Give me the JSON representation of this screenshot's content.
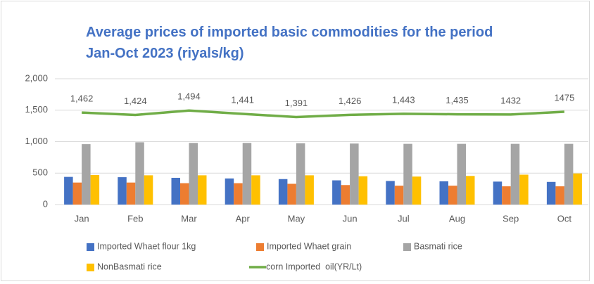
{
  "chart_data": {
    "type": "bar",
    "title": [
      "Average prices of imported basic commodities for the period",
      "Jan-Oct 2023 (riyals/kg)"
    ],
    "categories": [
      "Jan",
      "Feb",
      "Mar",
      "Apr",
      "May",
      "Jun",
      "Jul",
      "Aug",
      "Sep",
      "Oct"
    ],
    "series": [
      {
        "name": "Imported Whaet flour 1kg",
        "color": "#4472c4",
        "values": [
          440,
          435,
          425,
          415,
          405,
          385,
          375,
          370,
          365,
          360
        ]
      },
      {
        "name": "Imported Whaet grain",
        "color": "#ed7d31",
        "values": [
          350,
          350,
          340,
          340,
          330,
          310,
          300,
          300,
          290,
          290
        ]
      },
      {
        "name": "Basmati rice",
        "color": "#a5a5a5",
        "values": [
          960,
          990,
          980,
          980,
          975,
          970,
          965,
          965,
          965,
          965
        ]
      },
      {
        "name": "NonBasmati rice",
        "color": "#ffc000",
        "values": [
          470,
          465,
          465,
          465,
          465,
          450,
          445,
          455,
          475,
          495
        ]
      },
      {
        "name": "corn Imported  oil(YR/Lt)",
        "color": "#70ad47",
        "type": "line",
        "values": [
          1462,
          1424,
          1494,
          1441,
          1391,
          1426,
          1443,
          1435,
          1432,
          1475
        ],
        "value_labels": [
          "1,462",
          "1,424",
          "1,494",
          "1,441",
          "1,391",
          "1,426",
          "1,443",
          "1,435",
          "1432",
          "1475"
        ]
      }
    ],
    "ylim": [
      0,
      2000
    ],
    "yticks": [
      0,
      500,
      {
        "value": 1000,
        "label": "1,000"
      },
      {
        "value": 1500,
        "label": "1,500"
      },
      {
        "value": 2000,
        "label": "2,000"
      }
    ],
    "grid": true,
    "legend": "bottom"
  }
}
